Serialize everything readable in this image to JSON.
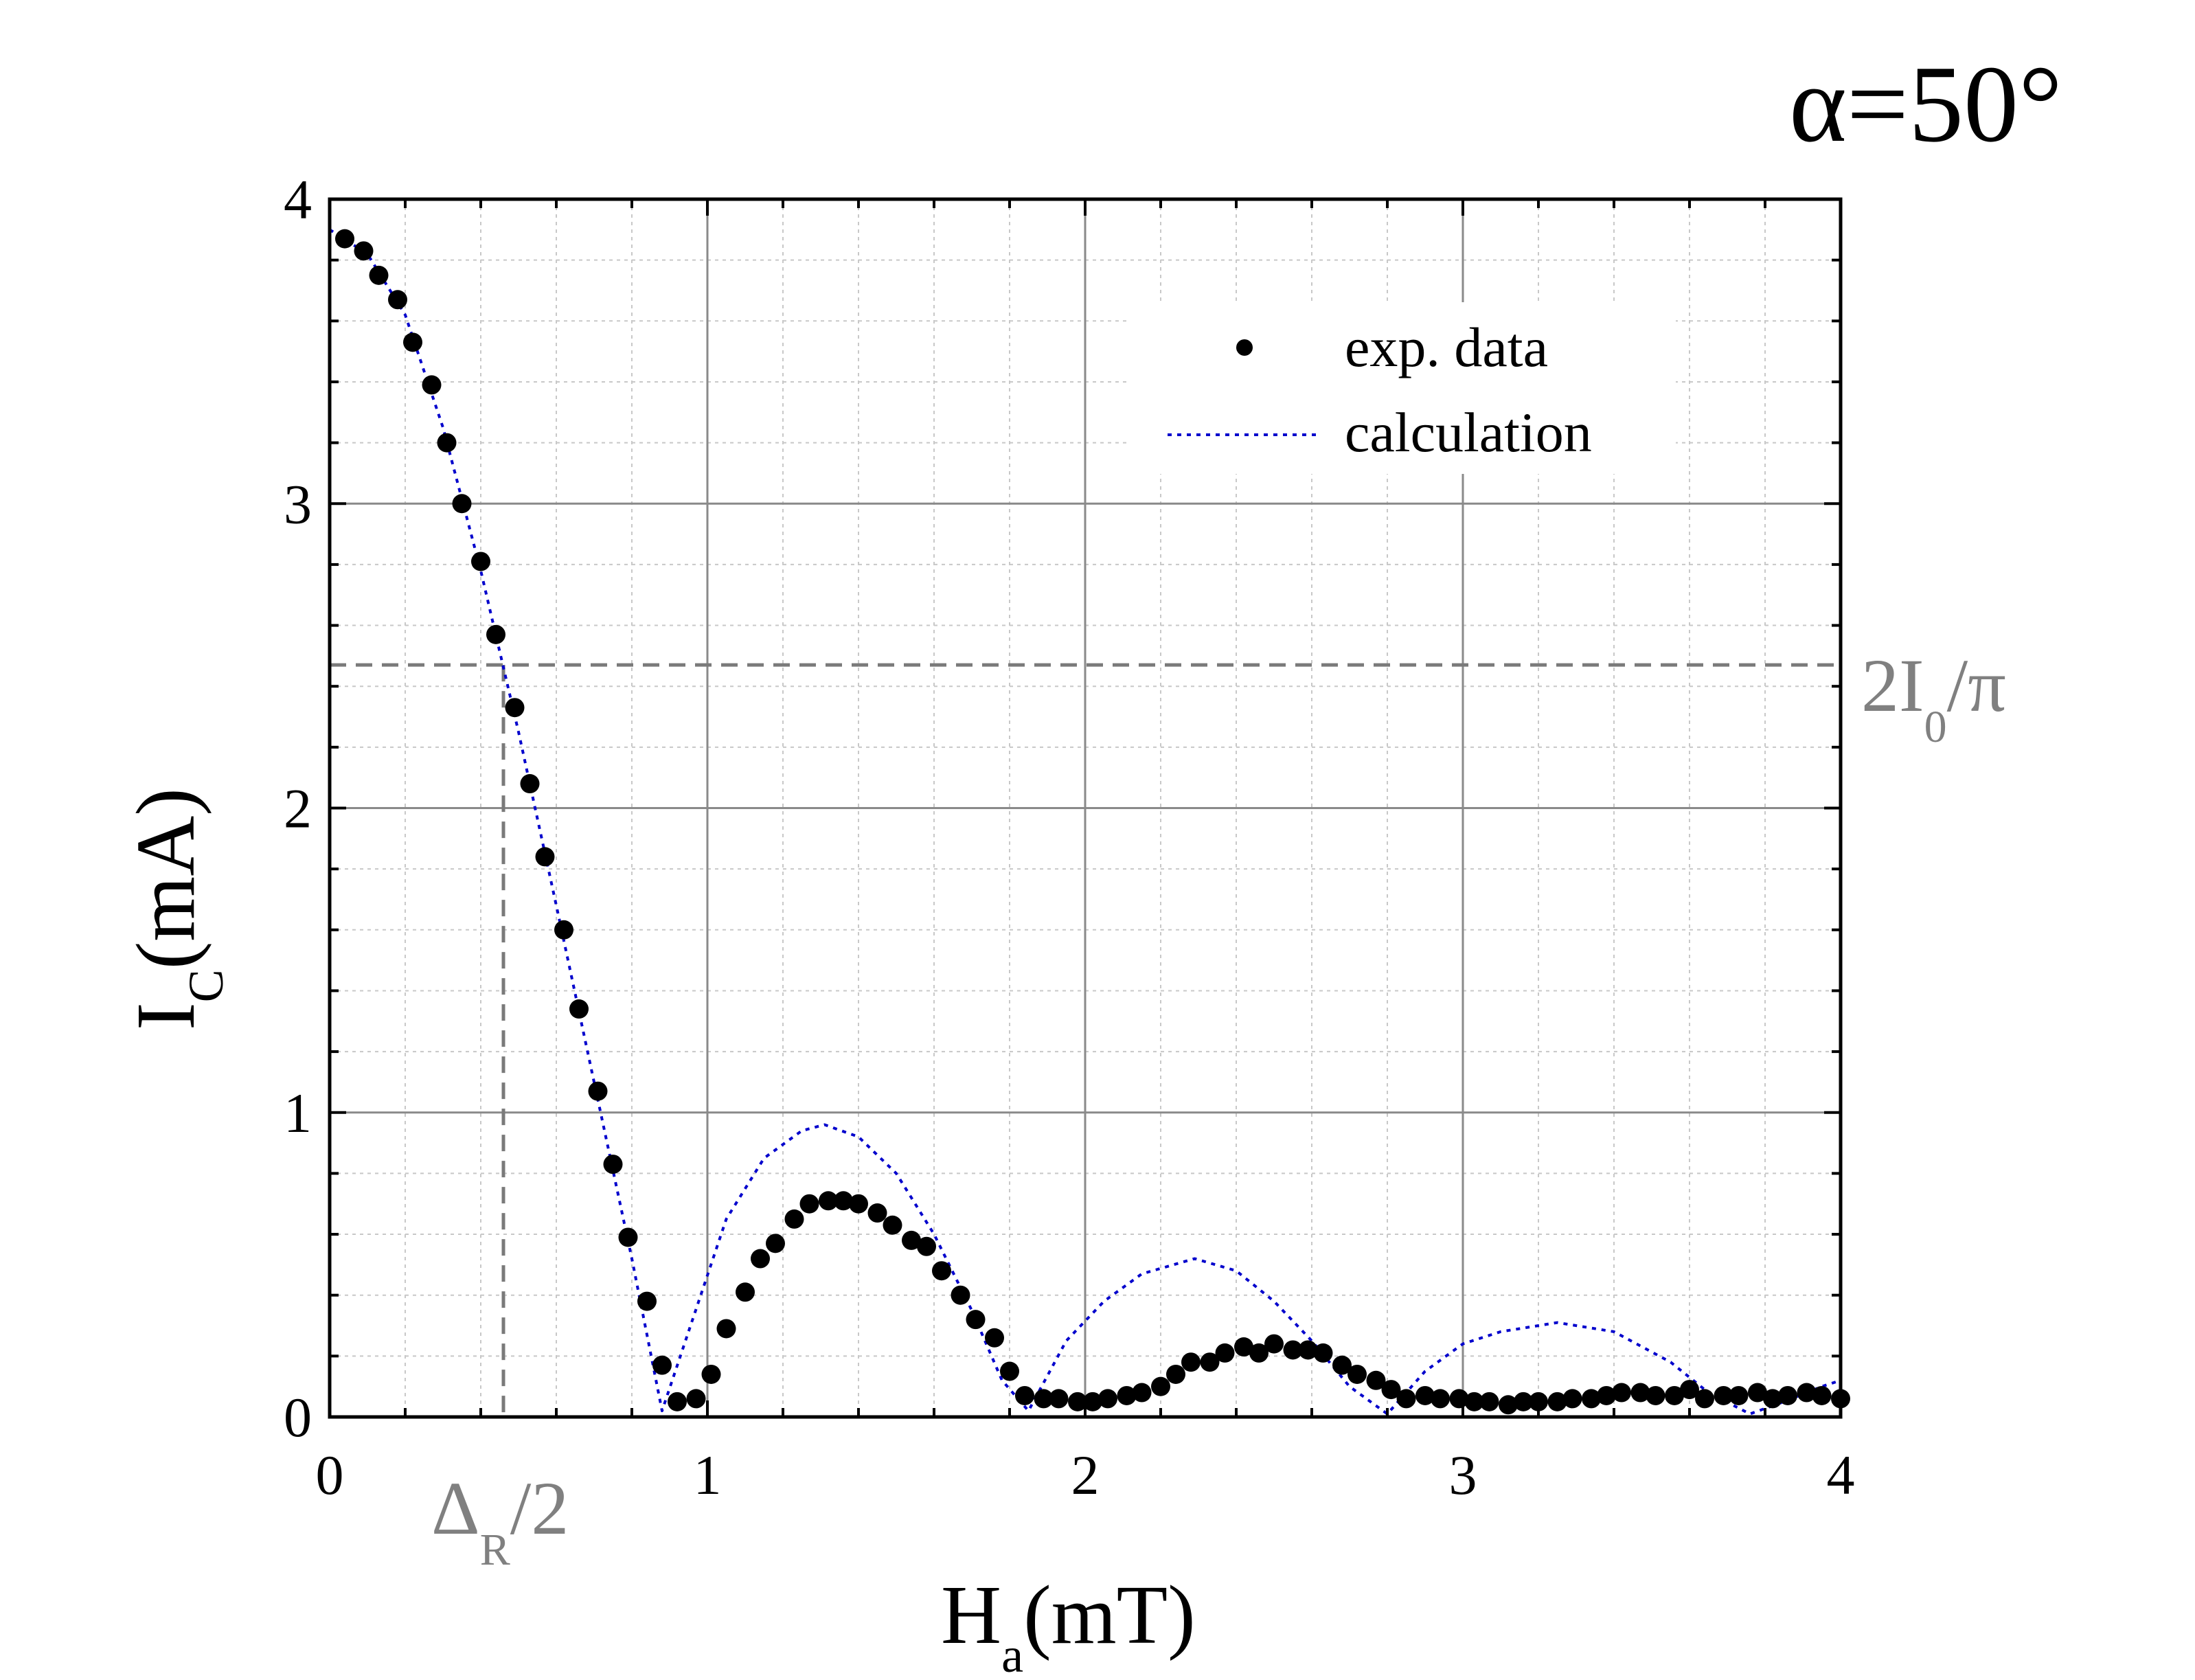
{
  "annotation_alpha": "α=50°",
  "chart_data": {
    "type": "scatter",
    "title": "",
    "xlabel": "H",
    "xlabel_sub": "a",
    "xlabel_unit": "(mT)",
    "ylabel": "I",
    "ylabel_sub": "C",
    "ylabel_unit": "(mA)",
    "xlim": [
      0,
      4
    ],
    "ylim": [
      0,
      4
    ],
    "x_ticks": [
      0,
      1,
      2,
      3,
      4
    ],
    "y_ticks": [
      0,
      1,
      2,
      3,
      4
    ],
    "x_tick_labels": [
      "0",
      "1",
      "2",
      "3",
      "4"
    ],
    "y_tick_labels": [
      "0",
      "1",
      "2",
      "3",
      "4"
    ],
    "grid": true,
    "legend_position": "top-right",
    "legend": {
      "exp_label": "exp. data",
      "calc_label": "calculation"
    },
    "reference_lines": {
      "horizontal_value": 2.47,
      "horizontal_label_main": "2I",
      "horizontal_label_sub": "0",
      "horizontal_label_tail": "/π",
      "vertical_value": 0.46,
      "vertical_label_main": "Δ",
      "vertical_label_sub": "R",
      "vertical_label_tail": "/2"
    },
    "series": [
      {
        "name": "exp. data",
        "kind": "points",
        "color": "#000000",
        "x": [
          0.04,
          0.09,
          0.13,
          0.18,
          0.22,
          0.27,
          0.31,
          0.35,
          0.4,
          0.44,
          0.49,
          0.53,
          0.57,
          0.62,
          0.66,
          0.71,
          0.75,
          0.79,
          0.84,
          0.88,
          0.92,
          0.97,
          1.01,
          1.05,
          1.1,
          1.14,
          1.18,
          1.23,
          1.27,
          1.32,
          1.36,
          1.4,
          1.45,
          1.49,
          1.54,
          1.58,
          1.62,
          1.67,
          1.71,
          1.76,
          1.8,
          1.84,
          1.89,
          1.93,
          1.98,
          2.02,
          2.06,
          2.11,
          2.15,
          2.2,
          2.24,
          2.28,
          2.33,
          2.37,
          2.42,
          2.46,
          2.5,
          2.55,
          2.59,
          2.63,
          2.68,
          2.72,
          2.77,
          2.81,
          2.85,
          2.9,
          2.94,
          2.99,
          3.03,
          3.07,
          3.12,
          3.16,
          3.2,
          3.25,
          3.29,
          3.34,
          3.38,
          3.42,
          3.47,
          3.51,
          3.56,
          3.6,
          3.64,
          3.69,
          3.73,
          3.78,
          3.82,
          3.86,
          3.91,
          3.95,
          4.0
        ],
        "y": [
          3.87,
          3.83,
          3.75,
          3.67,
          3.53,
          3.39,
          3.2,
          3.0,
          2.81,
          2.57,
          2.33,
          2.08,
          1.84,
          1.6,
          1.34,
          1.07,
          0.83,
          0.59,
          0.38,
          0.17,
          0.05,
          0.06,
          0.14,
          0.29,
          0.41,
          0.52,
          0.57,
          0.65,
          0.7,
          0.71,
          0.71,
          0.7,
          0.67,
          0.63,
          0.58,
          0.56,
          0.48,
          0.4,
          0.32,
          0.26,
          0.15,
          0.07,
          0.06,
          0.06,
          0.05,
          0.05,
          0.06,
          0.07,
          0.08,
          0.1,
          0.14,
          0.18,
          0.18,
          0.21,
          0.23,
          0.21,
          0.24,
          0.22,
          0.22,
          0.21,
          0.17,
          0.14,
          0.12,
          0.09,
          0.06,
          0.07,
          0.06,
          0.06,
          0.05,
          0.05,
          0.04,
          0.05,
          0.05,
          0.05,
          0.06,
          0.06,
          0.07,
          0.08,
          0.08,
          0.07,
          0.07,
          0.09,
          0.06,
          0.07,
          0.07,
          0.08,
          0.06,
          0.07,
          0.08,
          0.07,
          0.06
        ]
      },
      {
        "name": "calculation",
        "kind": "dotted-line",
        "color": "#0000cc",
        "x": [
          0.0,
          0.1,
          0.2,
          0.3,
          0.4,
          0.5,
          0.6,
          0.7,
          0.8,
          0.88,
          0.95,
          1.05,
          1.15,
          1.25,
          1.31,
          1.4,
          1.5,
          1.6,
          1.7,
          1.78,
          1.85,
          1.95,
          2.05,
          2.15,
          2.29,
          2.4,
          2.5,
          2.6,
          2.7,
          2.8,
          2.9,
          3.0,
          3.1,
          3.25,
          3.4,
          3.55,
          3.65,
          3.76,
          3.85,
          3.95,
          4.0
        ],
        "y": [
          3.9,
          3.82,
          3.62,
          3.25,
          2.78,
          2.25,
          1.68,
          1.1,
          0.52,
          0.02,
          0.28,
          0.65,
          0.85,
          0.94,
          0.96,
          0.92,
          0.8,
          0.6,
          0.35,
          0.12,
          0.02,
          0.25,
          0.38,
          0.47,
          0.52,
          0.48,
          0.38,
          0.25,
          0.1,
          0.01,
          0.15,
          0.24,
          0.28,
          0.31,
          0.28,
          0.18,
          0.08,
          0.01,
          0.05,
          0.1,
          0.12
        ]
      }
    ]
  }
}
